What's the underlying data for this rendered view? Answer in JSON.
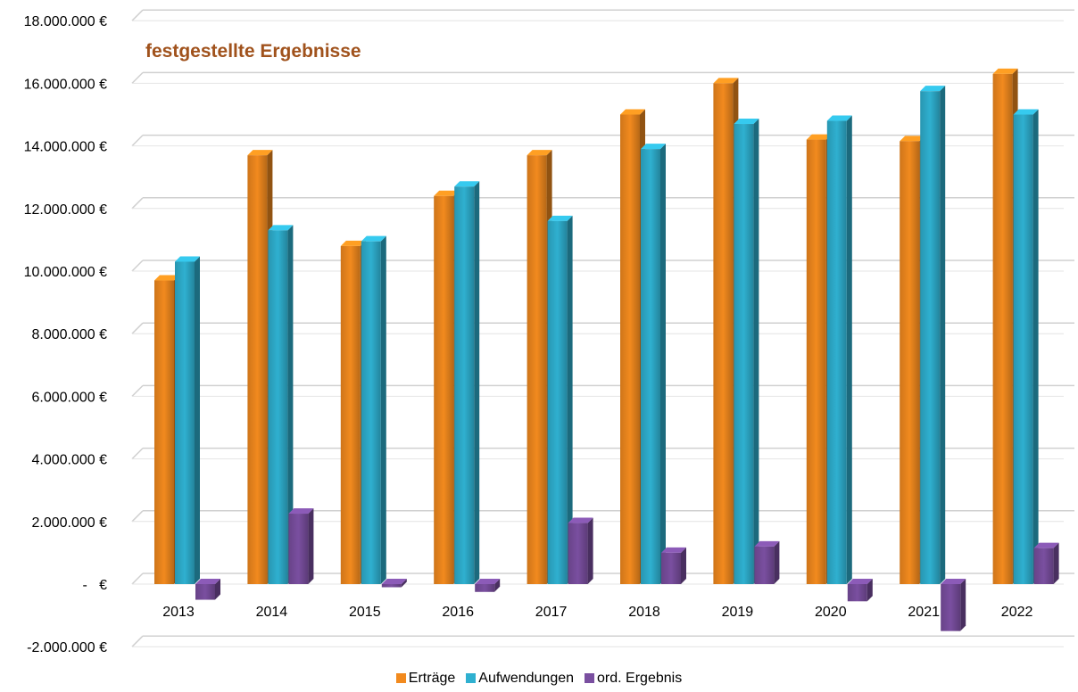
{
  "chart_data": {
    "type": "bar",
    "title": "festgestellte Ergebnisse",
    "categories": [
      "2013",
      "2014",
      "2015",
      "2016",
      "2017",
      "2018",
      "2019",
      "2020",
      "2021",
      "2022"
    ],
    "series": [
      {
        "name": "Erträge",
        "color": "#f28a1e",
        "values": [
          9700000,
          13700000,
          10800000,
          12400000,
          13700000,
          15000000,
          16000000,
          14200000,
          14150000,
          16300000
        ]
      },
      {
        "name": "Aufwendungen",
        "color": "#2fb0d0",
        "values": [
          10300000,
          11300000,
          10950000,
          12700000,
          11600000,
          13900000,
          14700000,
          14800000,
          15750000,
          15000000
        ]
      },
      {
        "name": "ord. Ergebnis",
        "color": "#7a4fa0",
        "values": [
          -500000,
          2250000,
          -100000,
          -250000,
          1950000,
          1000000,
          1200000,
          -550000,
          -1500000,
          1150000
        ]
      }
    ],
    "y_tick_labels": [
      "-2.000.000 €",
      "-   €",
      "2.000.000 €",
      "4.000.000 €",
      "6.000.000 €",
      "8.000.000 €",
      "10.000.000 €",
      "12.000.000 €",
      "14.000.000 €",
      "16.000.000 €",
      "18.000.000 €"
    ],
    "y_ticks": [
      -2000000,
      0,
      2000000,
      4000000,
      6000000,
      8000000,
      10000000,
      12000000,
      14000000,
      16000000,
      18000000
    ],
    "ylim": [
      -2000000,
      18000000
    ],
    "title_color": "#a0521c",
    "grid": true,
    "legend_position": "bottom"
  }
}
